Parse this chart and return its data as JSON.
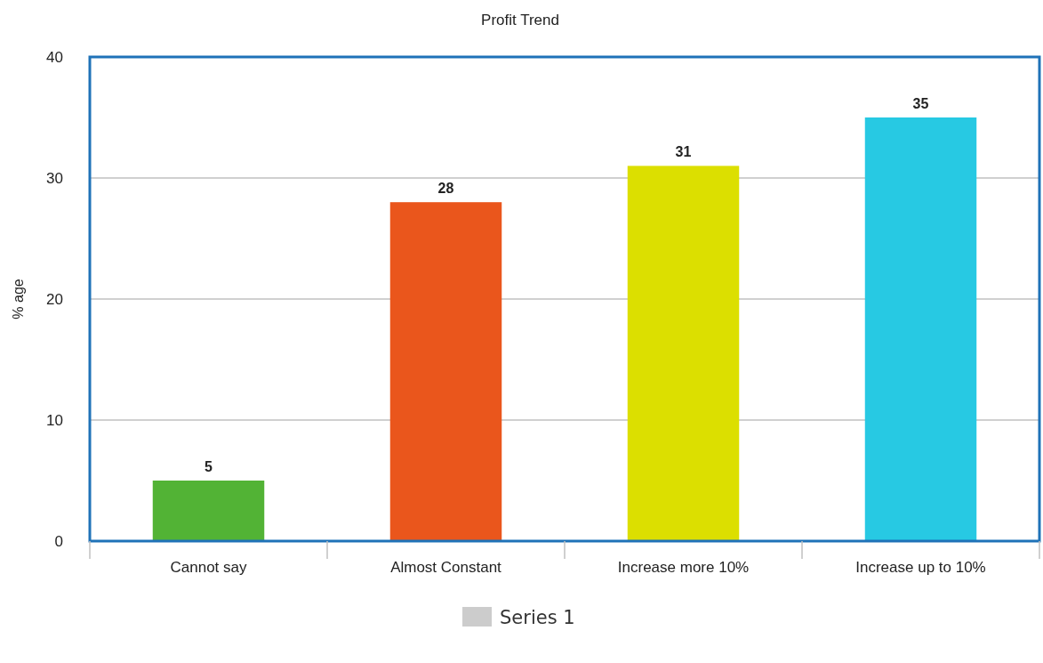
{
  "chart_data": {
    "type": "bar",
    "title": "Profit Trend",
    "ylabel": "% age",
    "categories": [
      "Cannot say",
      "Almost Constant",
      "Increase more 10%",
      "Increase up to 10%"
    ],
    "series": [
      {
        "name": "Series 1",
        "color": "#cccccc",
        "colors": [
          "#52b335",
          "#ea561c",
          "#dcdf00",
          "#27c9e3"
        ],
        "values": [
          5,
          28,
          31,
          35
        ]
      }
    ],
    "ylim": [
      0,
      40
    ],
    "yticks": [
      0,
      10,
      20,
      30,
      40
    ],
    "grid": "y",
    "legend": "bottom",
    "data_labels": true
  }
}
